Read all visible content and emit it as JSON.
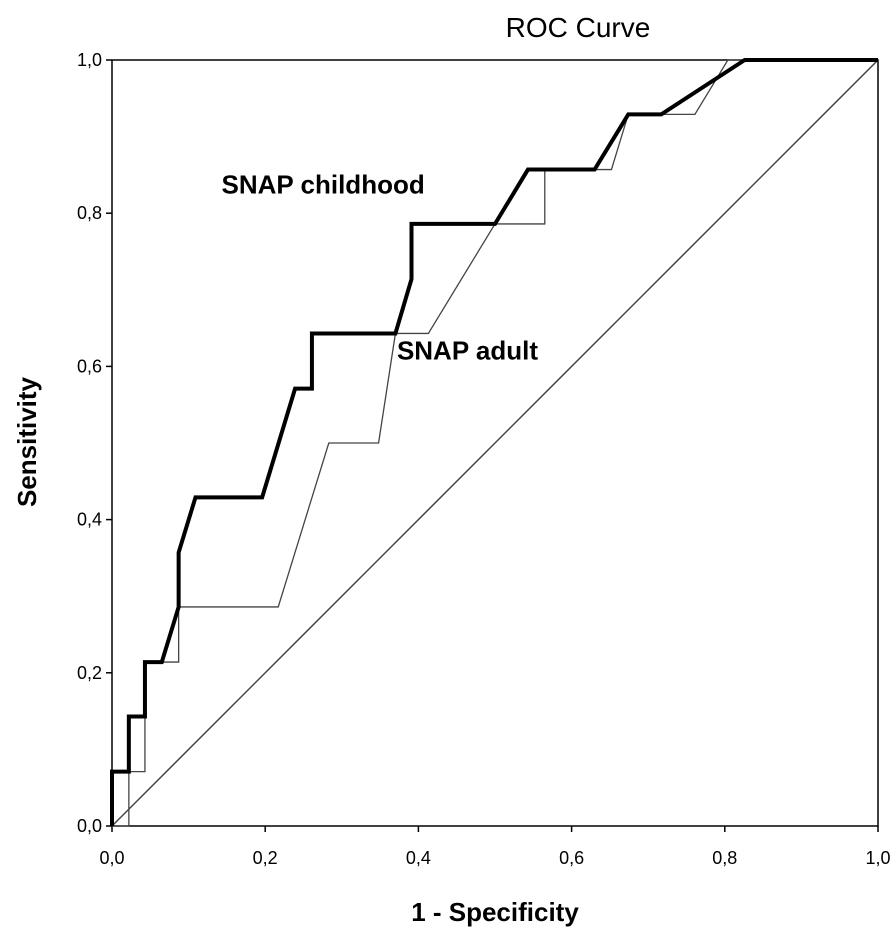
{
  "chart_data": {
    "type": "line",
    "title": "ROC Curve",
    "xlabel": "1 - Specificity",
    "ylabel": "Sensitivity",
    "xlim": [
      0,
      1
    ],
    "ylim": [
      0,
      1
    ],
    "xticks": [
      "0,0",
      "0,2",
      "0,4",
      "0,6",
      "0,8",
      "1,0"
    ],
    "yticks": [
      "0,0",
      "0,2",
      "0,4",
      "0,6",
      "0,8",
      "1,0"
    ],
    "grid": false,
    "series": [
      {
        "name": "SNAP childhood",
        "color": "#000000",
        "style": "thick",
        "x": [
          0.0,
          0.0,
          0.022,
          0.022,
          0.043,
          0.043,
          0.065,
          0.087,
          0.087,
          0.109,
          0.196,
          0.239,
          0.261,
          0.261,
          0.37,
          0.391,
          0.391,
          0.5,
          0.543,
          0.63,
          0.674,
          0.717,
          0.826,
          1.0
        ],
        "y": [
          0.0,
          0.071,
          0.071,
          0.143,
          0.143,
          0.214,
          0.214,
          0.286,
          0.357,
          0.429,
          0.429,
          0.571,
          0.571,
          0.643,
          0.643,
          0.714,
          0.786,
          0.786,
          0.857,
          0.857,
          0.929,
          0.929,
          1.0,
          1.0
        ]
      },
      {
        "name": "SNAP adult",
        "color": "#444444",
        "style": "thin",
        "x": [
          0.0,
          0.022,
          0.022,
          0.043,
          0.043,
          0.087,
          0.087,
          0.217,
          0.283,
          0.348,
          0.37,
          0.413,
          0.5,
          0.565,
          0.565,
          0.652,
          0.674,
          0.761,
          0.804,
          1.0
        ],
        "y": [
          0.0,
          0.0,
          0.071,
          0.071,
          0.214,
          0.214,
          0.286,
          0.286,
          0.5,
          0.5,
          0.643,
          0.643,
          0.786,
          0.786,
          0.857,
          0.857,
          0.929,
          0.929,
          1.0,
          1.0
        ]
      },
      {
        "name": "",
        "color": "#444444",
        "style": "reference",
        "x": [
          0,
          1
        ],
        "y": [
          0,
          1
        ]
      }
    ],
    "annotations": [
      {
        "text": "SNAP childhood",
        "x": 0.143,
        "y": 0.826
      },
      {
        "text": "SNAP adult",
        "x": 0.372,
        "y": 0.609
      }
    ]
  }
}
